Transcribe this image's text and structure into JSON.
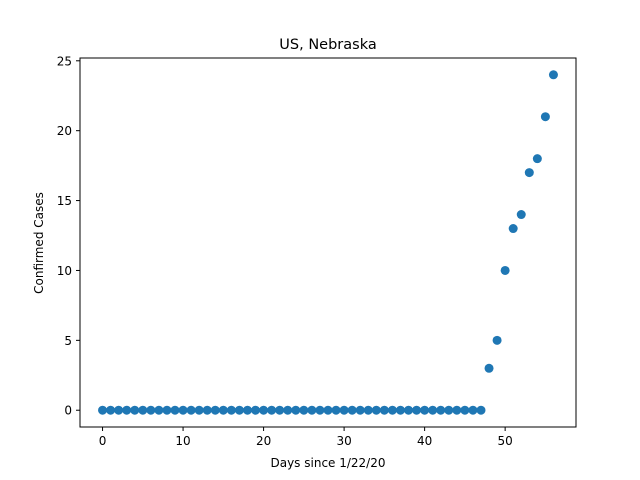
{
  "chart_data": {
    "type": "scatter",
    "title": "US, Nebraska",
    "xlabel": "Days since 1/22/20",
    "ylabel": "Confirmed Cases",
    "xlim": [
      -2.8,
      58.8
    ],
    "ylim": [
      -1.2,
      25.2
    ],
    "xticks": [
      0,
      10,
      20,
      30,
      40,
      50
    ],
    "yticks": [
      0,
      5,
      10,
      15,
      20,
      25
    ],
    "grid": false,
    "marker_color": "#1f77b4",
    "x": [
      0,
      1,
      2,
      3,
      4,
      5,
      6,
      7,
      8,
      9,
      10,
      11,
      12,
      13,
      14,
      15,
      16,
      17,
      18,
      19,
      20,
      21,
      22,
      23,
      24,
      25,
      26,
      27,
      28,
      29,
      30,
      31,
      32,
      33,
      34,
      35,
      36,
      37,
      38,
      39,
      40,
      41,
      42,
      43,
      44,
      45,
      46,
      47,
      48,
      49,
      50,
      51,
      52,
      53,
      54,
      55,
      56
    ],
    "y": [
      0,
      0,
      0,
      0,
      0,
      0,
      0,
      0,
      0,
      0,
      0,
      0,
      0,
      0,
      0,
      0,
      0,
      0,
      0,
      0,
      0,
      0,
      0,
      0,
      0,
      0,
      0,
      0,
      0,
      0,
      0,
      0,
      0,
      0,
      0,
      0,
      0,
      0,
      0,
      0,
      0,
      0,
      0,
      0,
      0,
      0,
      0,
      0,
      3,
      5,
      10,
      13,
      14,
      17,
      18,
      21,
      24
    ]
  }
}
